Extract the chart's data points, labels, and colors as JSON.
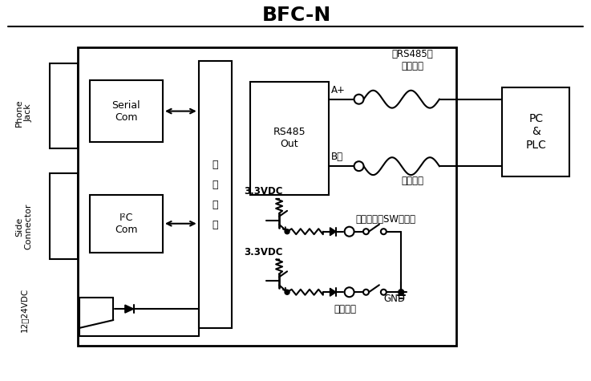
{
  "title": "BFC-N",
  "bg_color": "#ffffff",
  "line_color": "#000000",
  "title_fontsize": 18,
  "phone_jack": "Phone\nJack",
  "side_connector": "Side\nConnector",
  "serial_com": "Serial\nCom",
  "i2c_com": "I²C\nCom",
  "internal": "内\n部\n电\n路",
  "rs485_out": "RS485\nOut",
  "vdc": "3.3VDC",
  "power": "12＄24VDC",
  "rs485_label": "〈RS485〉",
  "brown": "（棕色）",
  "aplus": "A+",
  "bminus": "B－",
  "pink": "（粉红）",
  "pc_plc": "PC\n&\nPLC",
  "black_sw": "（黑色）〈SW输出〉",
  "white": "（白色）",
  "gnd": "GND"
}
